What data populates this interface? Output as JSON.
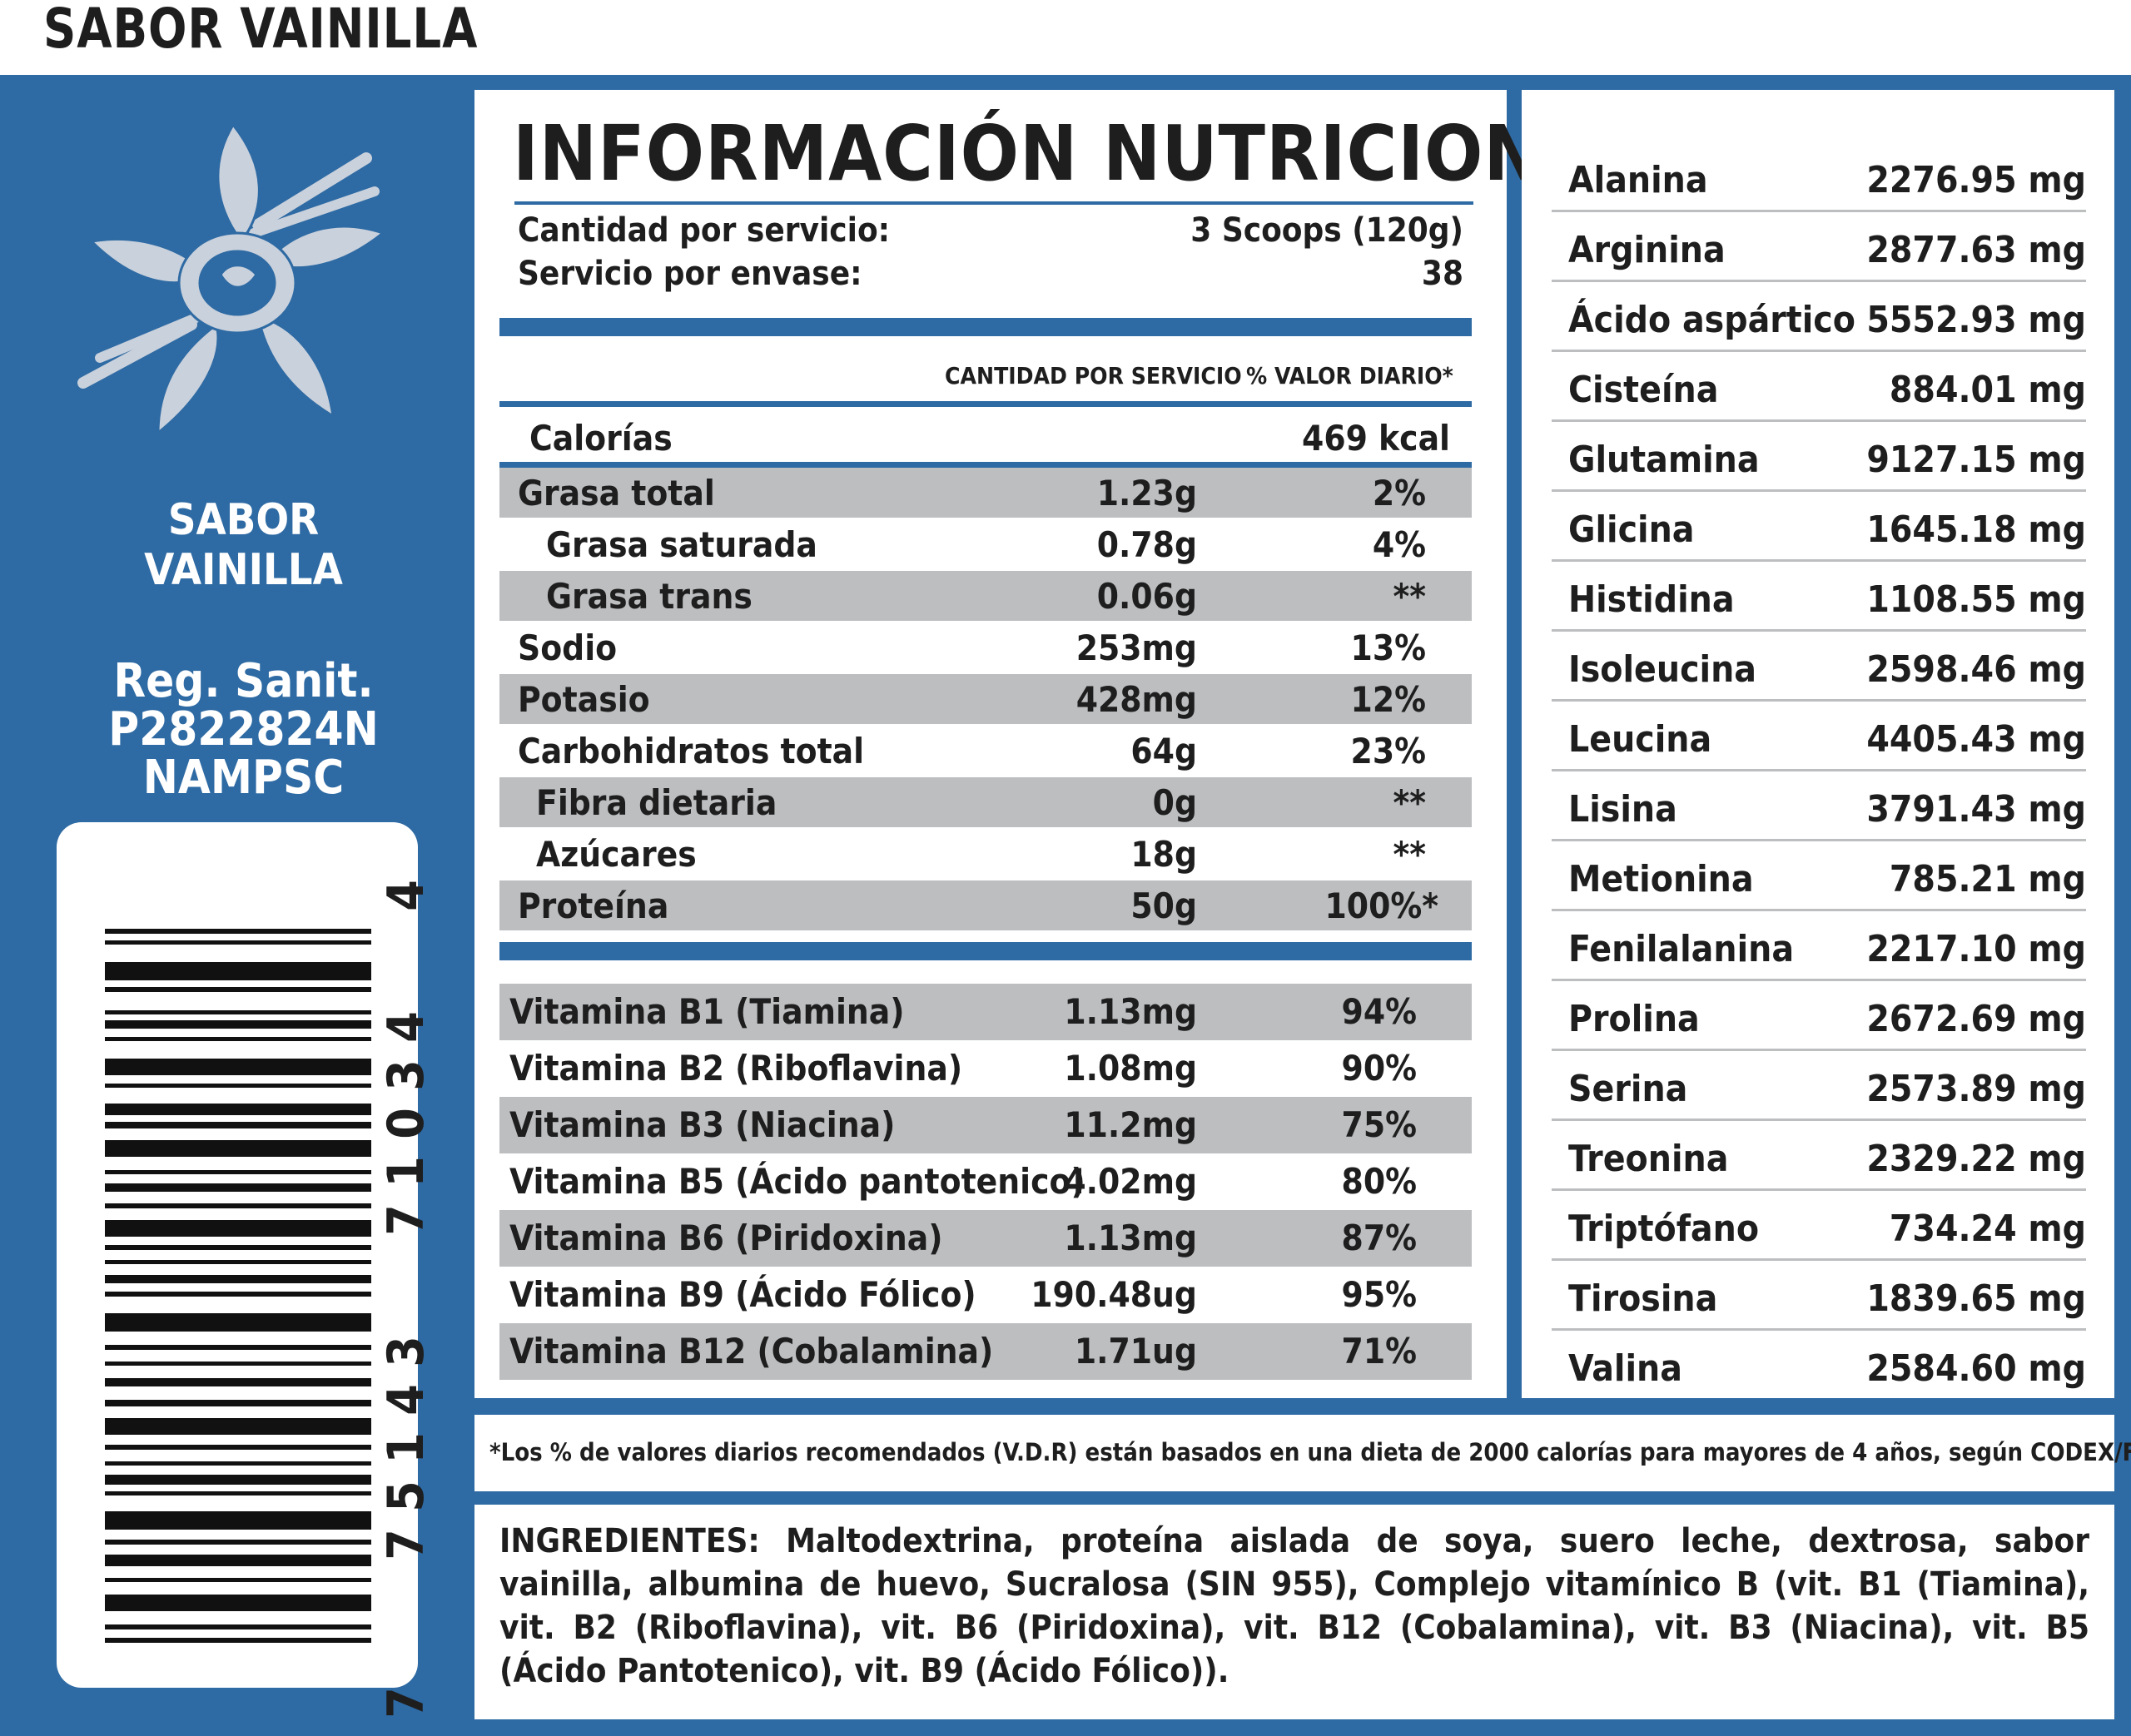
{
  "header": {
    "flavor_title": "SABOR VAINILLA"
  },
  "side": {
    "flavor_line1": "SABOR",
    "flavor_line2": "VAINILLA",
    "reg_line1": "Reg. Sanit.",
    "reg_line2": "P2822824N",
    "reg_line3": "NAMPSC",
    "barcode_digits": [
      "7",
      "7",
      "5",
      "1",
      "4",
      "3",
      "7",
      "1",
      "0",
      "3",
      "4",
      "4"
    ],
    "flower_icon": "vanilla-flower-icon"
  },
  "nutrition": {
    "title": "INFORMACIÓN NUTRICIONAL",
    "serving_label": "Cantidad por servicio:",
    "serving_value": "3 Scoops (120g)",
    "servings_label": "Servicio por envase:",
    "servings_value": "38",
    "col_amount": "CANTIDAD POR SERVICIO",
    "col_dv": "% VALOR DIARIO*",
    "calories_label": "Calorías",
    "calories_value": "469 kcal",
    "rows": [
      {
        "label": "Grasa total",
        "amount": "1.23g",
        "dv": "2%"
      },
      {
        "label": "Grasa saturada",
        "amount": "0.78g",
        "dv": "4%"
      },
      {
        "label": "Grasa trans",
        "amount": "0.06g",
        "dv": "**"
      },
      {
        "label": "Sodio",
        "amount": "253mg",
        "dv": "13%"
      },
      {
        "label": "Potasio",
        "amount": "428mg",
        "dv": "12%"
      },
      {
        "label": "Carbohidratos total",
        "amount": "64g",
        "dv": "23%"
      },
      {
        "label": "Fibra dietaria",
        "amount": "0g",
        "dv": "**"
      },
      {
        "label": "Azúcares",
        "amount": "18g",
        "dv": "**"
      },
      {
        "label": "Proteína",
        "amount": "50g",
        "dv": "100%*"
      }
    ],
    "vitamins": [
      {
        "label": "Vitamina B1 (Tiamina)",
        "amount": "1.13mg",
        "dv": "94%"
      },
      {
        "label": "Vitamina B2 (Riboflavina)",
        "amount": "1.08mg",
        "dv": "90%"
      },
      {
        "label": "Vitamina B3 (Niacina)",
        "amount": "11.2mg",
        "dv": "75%"
      },
      {
        "label": "Vitamina B5 (Ácido pantotenico)",
        "amount": "4.02mg",
        "dv": "80%"
      },
      {
        "label": "Vitamina B6 (Piridoxina)",
        "amount": "1.13mg",
        "dv": "87%"
      },
      {
        "label": "Vitamina B9 (Ácido Fólico)",
        "amount": "190.48ug",
        "dv": "95%"
      },
      {
        "label": "Vitamina B12 (Cobalamina)",
        "amount": "1.71ug",
        "dv": "71%"
      }
    ]
  },
  "amino": [
    {
      "name": "Alanina",
      "value": "2276.95 mg"
    },
    {
      "name": "Arginina",
      "value": "2877.63 mg"
    },
    {
      "name": "Ácido aspártico",
      "value": "5552.93 mg"
    },
    {
      "name": "Cisteína",
      "value": "884.01 mg"
    },
    {
      "name": "Glutamina",
      "value": "9127.15 mg"
    },
    {
      "name": "Glicina",
      "value": "1645.18 mg"
    },
    {
      "name": "Histidina",
      "value": "1108.55 mg"
    },
    {
      "name": "Isoleucina",
      "value": "2598.46 mg"
    },
    {
      "name": "Leucina",
      "value": "4405.43 mg"
    },
    {
      "name": "Lisina",
      "value": "3791.43 mg"
    },
    {
      "name": "Metionina",
      "value": "785.21 mg"
    },
    {
      "name": "Fenilalanina",
      "value": "2217.10 mg"
    },
    {
      "name": "Prolina",
      "value": "2672.69 mg"
    },
    {
      "name": "Serina",
      "value": "2573.89 mg"
    },
    {
      "name": "Treonina",
      "value": "2329.22 mg"
    },
    {
      "name": "Triptófano",
      "value": "734.24 mg"
    },
    {
      "name": "Tirosina",
      "value": "1839.65 mg"
    },
    {
      "name": "Valina",
      "value": "2584.60 mg"
    }
  ],
  "footnote": "*Los % de valores diarios recomendados (V.D.R) están basados en una dieta de 2000 calorías para mayores de 4 años, según CODEX/FDA.",
  "ingredients": "INGREDIENTES: Maltodextrina, proteína aislada de soya, suero leche, dextrosa, sabor vainilla, albumina de huevo, Sucralosa (SIN 955), Complejo vitamínico B (vit. B1 (Tiamina), vit. B2 (Riboflavina), vit. B6 (Piridoxina), vit. B12 (Cobalamina), vit. B3 (Niacina), vit. B5 (Ácido Pantotenico), vit. B9 (Ácido Fólico)).",
  "colors": {
    "brand_blue": "#2e6aa3",
    "row_gray": "#bcbec0",
    "flower": "#c9d1dc"
  }
}
